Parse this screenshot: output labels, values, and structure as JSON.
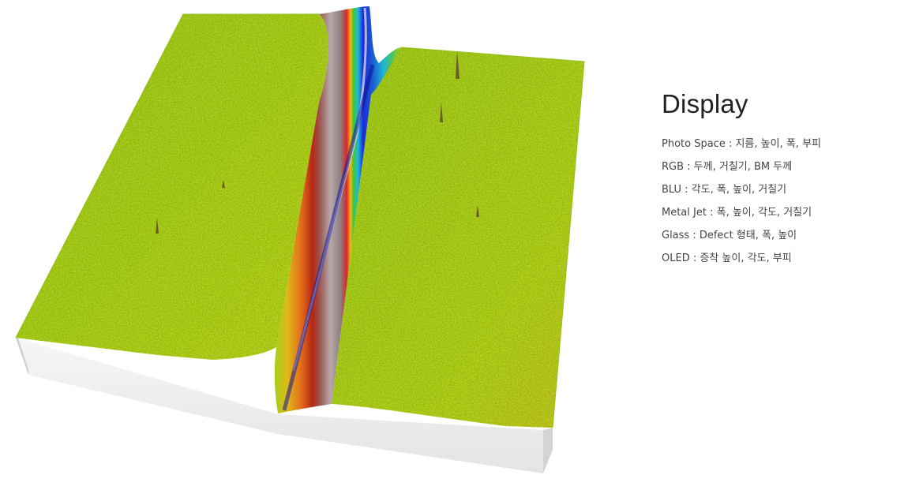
{
  "section": {
    "title": "Display",
    "specs": [
      "Photo Space : 지름, 높이, 폭, 부피",
      "RGB : 두께, 거칠기, BM 두께",
      "BLU : 각도, 폭, 높이, 거칠기",
      "Metal Jet : 폭, 높이, 각도, 거칠기",
      "Glass  : Defect 형태, 폭, 높이",
      "OLED : 증착 높이, 각도, 부피"
    ]
  },
  "image": {
    "icon": "3d-surface-height-map",
    "colors": {
      "surface": "#a8d21a",
      "ridge": "#8a7f7f",
      "trench": "#1a1ad8",
      "base_front": "#f2f2f2",
      "base_side": "#d9d9d9"
    }
  }
}
